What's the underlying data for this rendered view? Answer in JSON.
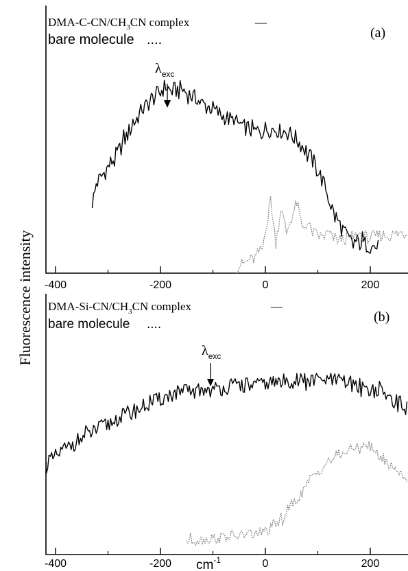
{
  "ylabel": "Fluorescence intensity",
  "xlabel": "cm",
  "xlabel_sup": "-1",
  "chart_data": [
    {
      "type": "line",
      "panel": "(a)",
      "xlim": [
        -420,
        270
      ],
      "xticks": [
        -400,
        -200,
        0,
        200
      ],
      "tick_labels": [
        "-400",
        "-200",
        "0",
        "200"
      ],
      "excitation_x": -190,
      "legend": {
        "complex_prefix": "DMA-C-CN/CH",
        "complex_sub": "3",
        "complex_suffix": "CN complex",
        "complex_marker": "—",
        "bare_label": "bare molecule",
        "bare_marker": "...."
      },
      "lambda_symbol": "λ",
      "lambda_sub": "exc",
      "series": [
        {
          "style": "solid",
          "x": [
            -330,
            -320,
            -300,
            -280,
            -260,
            -240,
            -220,
            -200,
            -190,
            -180,
            -160,
            -140,
            -120,
            -100,
            -80,
            -60,
            -40,
            -20,
            0,
            20,
            40,
            60,
            80,
            100,
            110,
            120,
            130,
            140,
            150,
            160,
            180,
            200,
            215
          ],
          "y": [
            0.28,
            0.36,
            0.42,
            0.48,
            0.56,
            0.63,
            0.68,
            0.72,
            0.74,
            0.72,
            0.73,
            0.7,
            0.67,
            0.65,
            0.62,
            0.6,
            0.58,
            0.56,
            0.57,
            0.57,
            0.56,
            0.53,
            0.48,
            0.41,
            0.36,
            0.3,
            0.24,
            0.2,
            0.16,
            0.13,
            0.12,
            0.11,
            0.1
          ]
        },
        {
          "style": "dotted",
          "x": [
            -55,
            -40,
            -20,
            -5,
            0,
            5,
            10,
            15,
            20,
            30,
            40,
            50,
            60,
            70,
            80,
            90,
            100,
            110,
            120,
            130,
            140,
            160,
            180,
            200,
            220,
            240,
            260,
            270
          ],
          "y": [
            0.02,
            0.04,
            0.06,
            0.1,
            0.18,
            0.22,
            0.3,
            0.2,
            0.12,
            0.26,
            0.16,
            0.22,
            0.28,
            0.18,
            0.2,
            0.16,
            0.15,
            0.14,
            0.16,
            0.14,
            0.13,
            0.14,
            0.15,
            0.14,
            0.15,
            0.15,
            0.16,
            0.15
          ]
        }
      ]
    },
    {
      "type": "line",
      "panel": "(b)",
      "xlim": [
        -420,
        270
      ],
      "xticks": [
        -400,
        -200,
        0,
        200
      ],
      "tick_labels": [
        "-400",
        "-200",
        "0",
        "200"
      ],
      "excitation_x": -105,
      "legend": {
        "complex_prefix": "DMA-Si-CN/CH",
        "complex_sub": "3",
        "complex_suffix": "CN complex",
        "complex_marker": "—",
        "bare_label": "bare molecule",
        "bare_marker": "...."
      },
      "lambda_symbol": "λ",
      "lambda_sub": "exc",
      "series": [
        {
          "style": "solid",
          "x": [
            -420,
            -400,
            -380,
            -350,
            -320,
            -300,
            -280,
            -250,
            -220,
            -200,
            -180,
            -150,
            -120,
            -100,
            -80,
            -50,
            -20,
            0,
            20,
            50,
            80,
            100,
            130,
            160,
            190,
            220,
            250,
            270
          ],
          "y": [
            0.38,
            0.42,
            0.46,
            0.5,
            0.54,
            0.56,
            0.59,
            0.62,
            0.65,
            0.67,
            0.69,
            0.7,
            0.71,
            0.71,
            0.72,
            0.73,
            0.73,
            0.74,
            0.74,
            0.75,
            0.75,
            0.75,
            0.75,
            0.74,
            0.72,
            0.7,
            0.66,
            0.63
          ]
        },
        {
          "style": "dotted",
          "x": [
            -150,
            -120,
            -100,
            -80,
            -60,
            -40,
            -20,
            0,
            10,
            20,
            40,
            60,
            80,
            100,
            120,
            140,
            160,
            180,
            190,
            200,
            220,
            240,
            260,
            270
          ],
          "y": [
            0.06,
            0.065,
            0.07,
            0.075,
            0.08,
            0.085,
            0.09,
            0.1,
            0.11,
            0.13,
            0.18,
            0.24,
            0.3,
            0.36,
            0.4,
            0.43,
            0.45,
            0.46,
            0.48,
            0.46,
            0.42,
            0.38,
            0.35,
            0.33
          ]
        }
      ]
    }
  ]
}
